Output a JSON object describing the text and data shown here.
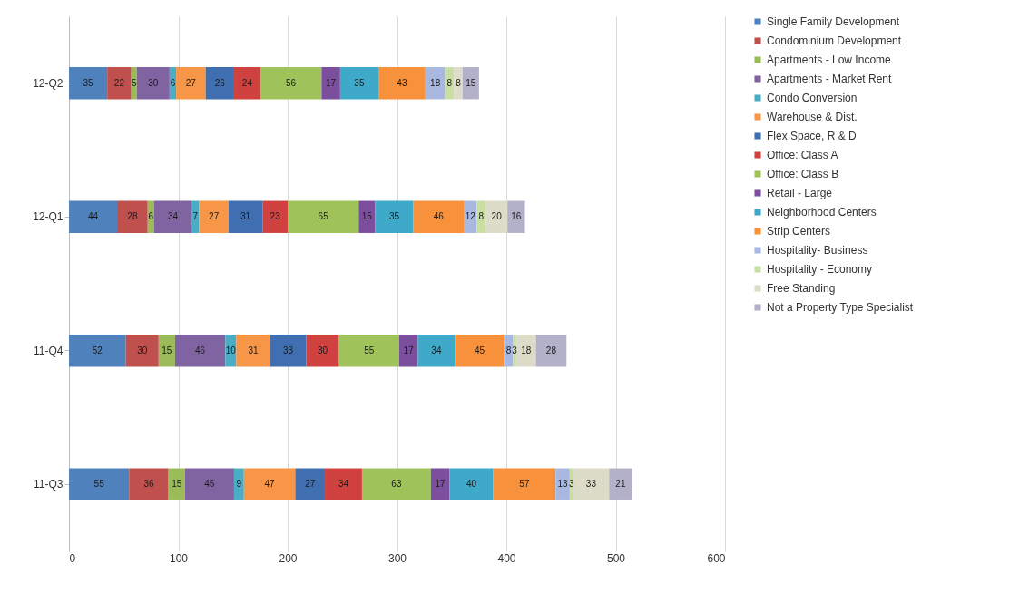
{
  "chart_data": {
    "type": "bar",
    "orientation": "horizontal",
    "stacked": true,
    "data_labels": true,
    "grid": "x",
    "legend": "right",
    "categories": [
      "12-Q2",
      "12-Q1",
      "11-Q4",
      "11-Q3"
    ],
    "xlim": [
      0,
      600
    ],
    "xticks": [
      0,
      100,
      200,
      300,
      400,
      500,
      600
    ],
    "series": [
      {
        "name": "Single Family Development",
        "color": "#4f81bd",
        "values": [
          35,
          44,
          52,
          55
        ]
      },
      {
        "name": "Condominium Development",
        "color": "#c0504d",
        "values": [
          22,
          28,
          30,
          36
        ]
      },
      {
        "name": "Apartments - Low Income",
        "color": "#9bbb59",
        "values": [
          5,
          6,
          15,
          15
        ]
      },
      {
        "name": "Apartments - Market Rent",
        "color": "#8064a2",
        "values": [
          30,
          34,
          46,
          45
        ]
      },
      {
        "name": "Condo Conversion",
        "color": "#4bacc6",
        "values": [
          6,
          7,
          10,
          9
        ]
      },
      {
        "name": "Warehouse & Dist.",
        "color": "#f79646",
        "values": [
          27,
          27,
          31,
          47
        ]
      },
      {
        "name": "Flex Space, R & D",
        "color": "#3f6fb0",
        "values": [
          26,
          31,
          33,
          27
        ]
      },
      {
        "name": "Office: Class A",
        "color": "#d0423f",
        "values": [
          24,
          23,
          30,
          34
        ]
      },
      {
        "name": "Office: Class B",
        "color": "#9fc35a",
        "values": [
          56,
          65,
          55,
          63
        ]
      },
      {
        "name": "Retail - Large",
        "color": "#7b4f9d",
        "values": [
          17,
          15,
          17,
          17
        ]
      },
      {
        "name": "Neighborhood Centers",
        "color": "#3fa9c9",
        "values": [
          35,
          35,
          34,
          40
        ]
      },
      {
        "name": "Strip Centers",
        "color": "#f8913c",
        "values": [
          43,
          46,
          45,
          57
        ]
      },
      {
        "name": "Hospitality- Business",
        "color": "#a9b8e0",
        "values": [
          18,
          12,
          8,
          13
        ]
      },
      {
        "name": "Hospitality - Economy",
        "color": "#c9dea4",
        "values": [
          8,
          8,
          3,
          3
        ]
      },
      {
        "name": "Free Standing",
        "color": "#dcdcc8",
        "values": [
          8,
          20,
          18,
          33
        ]
      },
      {
        "name": "Not a Property Type Specialist",
        "color": "#b3b0c9",
        "values": [
          15,
          16,
          28,
          21
        ]
      }
    ]
  }
}
